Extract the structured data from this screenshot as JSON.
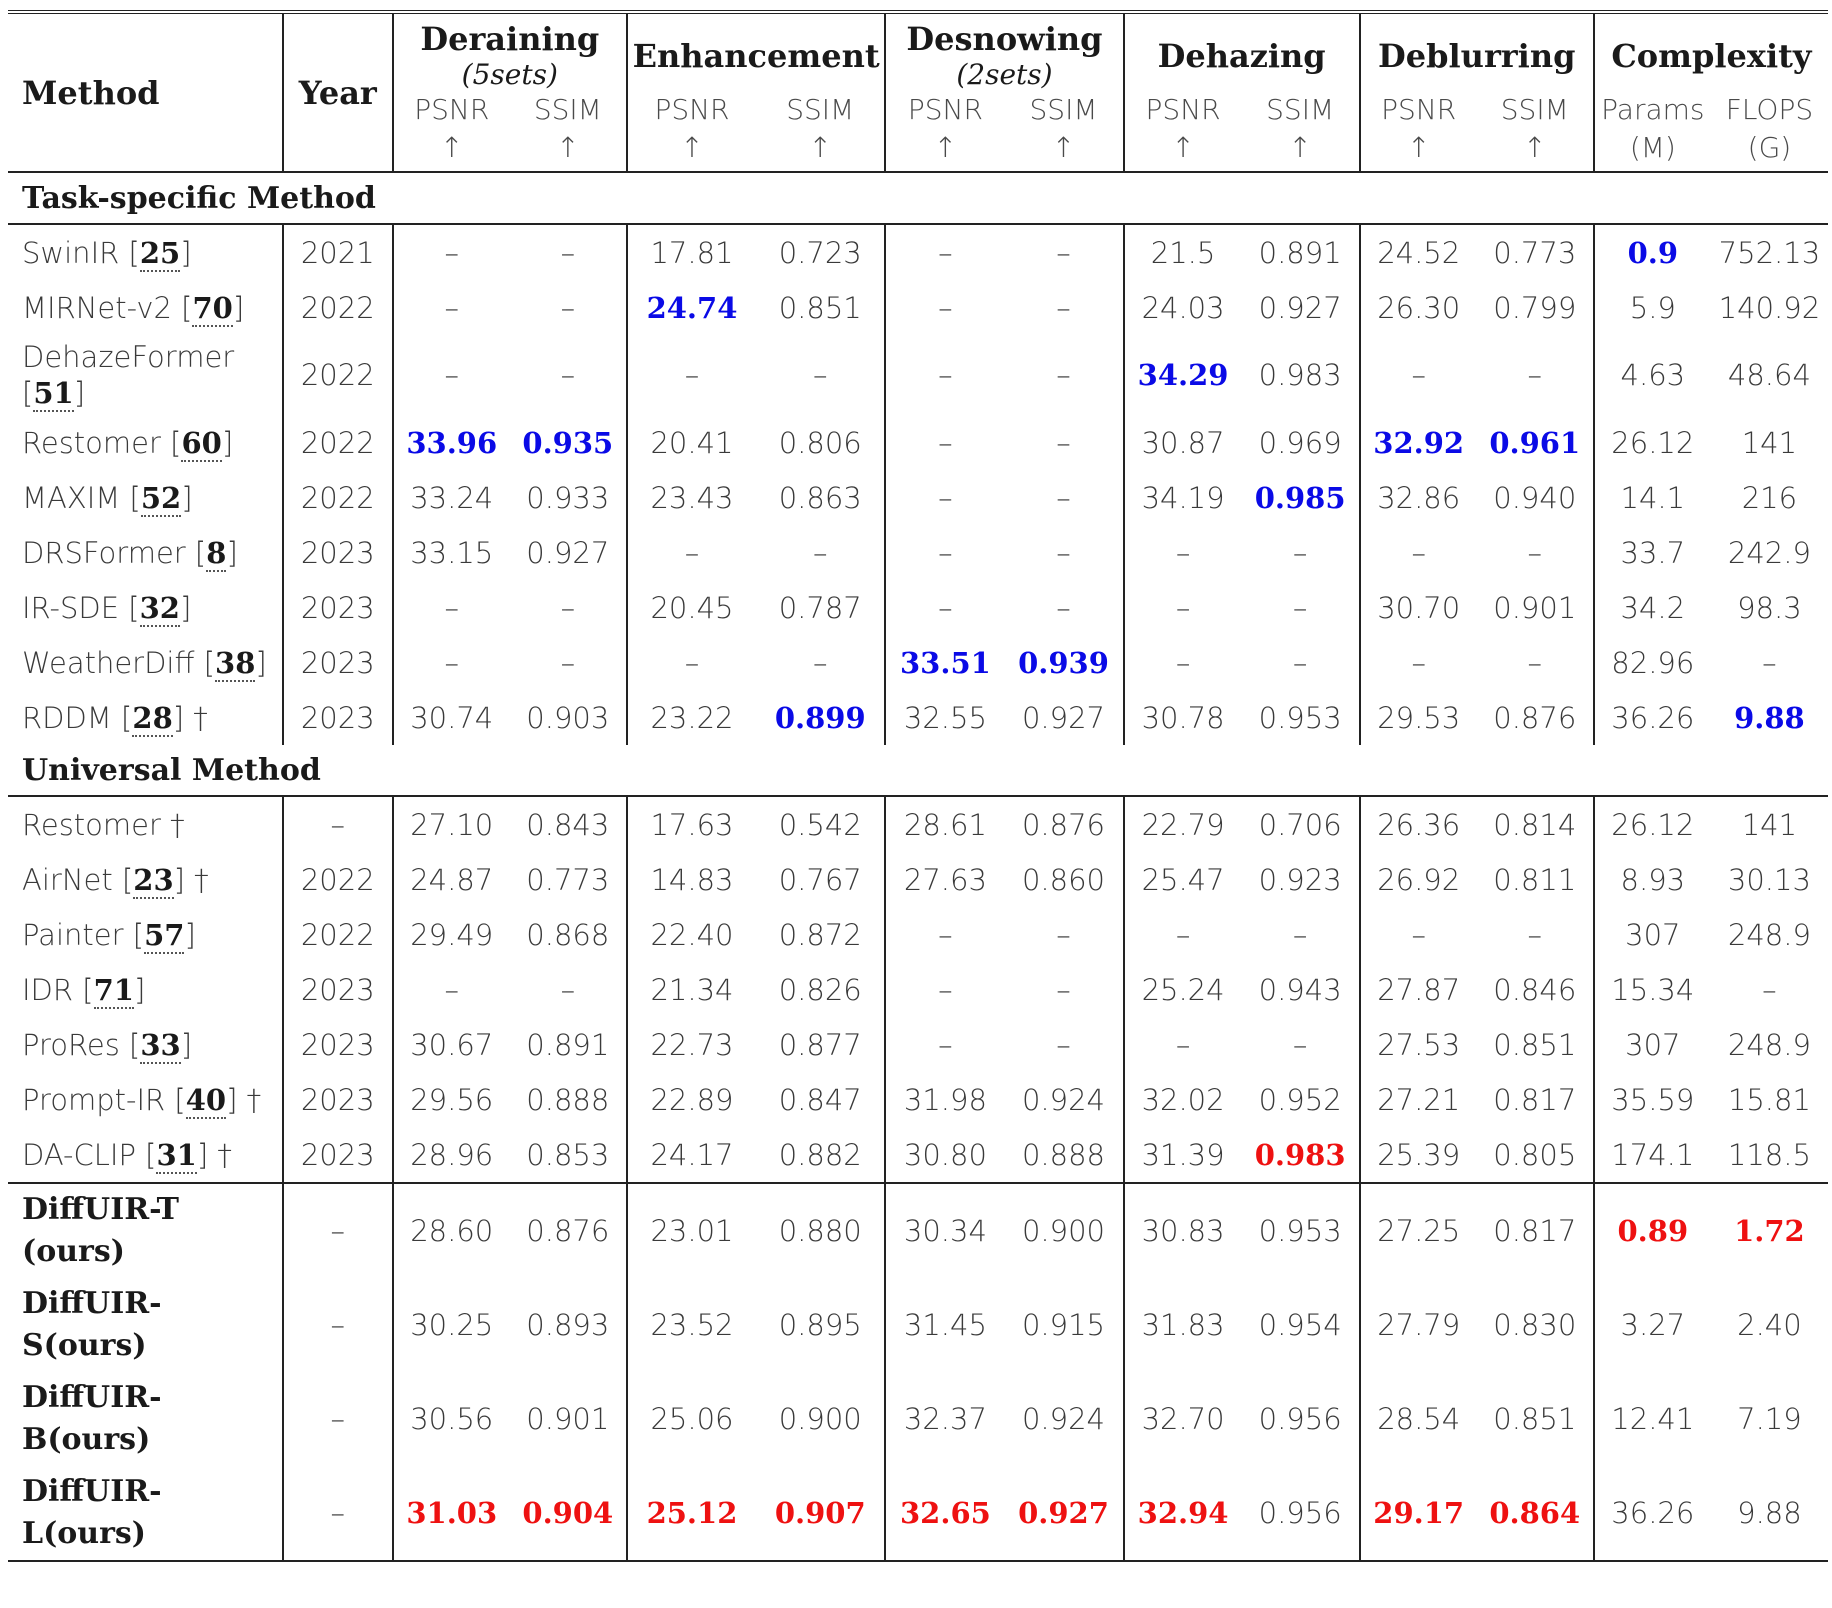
{
  "colors": {
    "blue_best": "#0a0ae6",
    "red_best": "#ee1111"
  },
  "header": {
    "method": "Method",
    "year": "Year",
    "groups": [
      {
        "title": "Deraining",
        "sub": "(5sets)",
        "m1": "PSNR",
        "m2": "SSIM",
        "a1": "↑",
        "a2": "↑"
      },
      {
        "title": "Enhancement",
        "sub": "",
        "m1": "PSNR",
        "m2": "SSIM",
        "a1": "↑",
        "a2": "↑"
      },
      {
        "title": "Desnowing",
        "sub": "(2sets)",
        "m1": "PSNR",
        "m2": "SSIM",
        "a1": "↑",
        "a2": "↑"
      },
      {
        "title": "Dehazing",
        "sub": "",
        "m1": "PSNR",
        "m2": "SSIM",
        "a1": "↑",
        "a2": "↑"
      },
      {
        "title": "Deblurring",
        "sub": "",
        "m1": "PSNR",
        "m2": "SSIM",
        "a1": "↑",
        "a2": "↑"
      },
      {
        "title": "Complexity",
        "sub": "",
        "m1": "Params",
        "m2": "FLOPS",
        "a1": "(M)",
        "a2": "(G)"
      }
    ]
  },
  "sections": [
    {
      "title": "Task-specific Method",
      "rows": [
        {
          "name": "SwinIR",
          "ref": "25",
          "suffix": "",
          "year": "2021",
          "cells": [
            "–",
            "–",
            "17.81",
            "0.723",
            "–",
            "–",
            "21.5",
            "0.891",
            "24.52",
            "0.773",
            "0.9",
            "752.13"
          ],
          "hl": {
            "10": "blue"
          }
        },
        {
          "name": "MIRNet-v2",
          "ref": "70",
          "suffix": "",
          "year": "2022",
          "cells": [
            "–",
            "–",
            "24.74",
            "0.851",
            "–",
            "–",
            "24.03",
            "0.927",
            "26.30",
            "0.799",
            "5.9",
            "140.92"
          ],
          "hl": {
            "2": "blue"
          }
        },
        {
          "name": "DehazeFormer",
          "ref": "51",
          "suffix": "",
          "year": "2022",
          "cells": [
            "–",
            "–",
            "–",
            "–",
            "–",
            "–",
            "34.29",
            "0.983",
            "–",
            "–",
            "4.63",
            "48.64"
          ],
          "hl": {
            "6": "blue"
          },
          "tall": true
        },
        {
          "name": "Restomer",
          "ref": "60",
          "suffix": "",
          "year": "2022",
          "cells": [
            "33.96",
            "0.935",
            "20.41",
            "0.806",
            "–",
            "–",
            "30.87",
            "0.969",
            "32.92",
            "0.961",
            "26.12",
            "141"
          ],
          "hl": {
            "0": "blue",
            "1": "blue",
            "8": "blue",
            "9": "blue"
          }
        },
        {
          "name": "MAXIM",
          "ref": "52",
          "suffix": "",
          "year": "2022",
          "cells": [
            "33.24",
            "0.933",
            "23.43",
            "0.863",
            "–",
            "–",
            "34.19",
            "0.985",
            "32.86",
            "0.940",
            "14.1",
            "216"
          ],
          "hl": {
            "7": "blue"
          }
        },
        {
          "name": "DRSFormer",
          "ref": "8",
          "suffix": "",
          "year": "2023",
          "cells": [
            "33.15",
            "0.927",
            "–",
            "–",
            "–",
            "–",
            "–",
            "–",
            "–",
            "–",
            "33.7",
            "242.9"
          ],
          "hl": {}
        },
        {
          "name": "IR-SDE",
          "ref": "32",
          "suffix": "",
          "year": "2023",
          "cells": [
            "–",
            "–",
            "20.45",
            "0.787",
            "–",
            "–",
            "–",
            "–",
            "30.70",
            "0.901",
            "34.2",
            "98.3"
          ],
          "hl": {}
        },
        {
          "name": "WeatherDiff",
          "ref": "38",
          "suffix": "",
          "year": "2023",
          "cells": [
            "–",
            "–",
            "–",
            "–",
            "33.51",
            "0.939",
            "–",
            "–",
            "–",
            "–",
            "82.96",
            "–"
          ],
          "hl": {
            "4": "blue",
            "5": "blue"
          }
        },
        {
          "name": "RDDM",
          "ref": "28",
          "suffix": " †",
          "year": "2023",
          "cells": [
            "30.74",
            "0.903",
            "23.22",
            "0.899",
            "32.55",
            "0.927",
            "30.78",
            "0.953",
            "29.53",
            "0.876",
            "36.26",
            "9.88"
          ],
          "hl": {
            "3": "blue",
            "11": "blue"
          }
        }
      ]
    },
    {
      "title": "Universal Method",
      "rows": [
        {
          "name": "Restomer †",
          "ref": "",
          "suffix": "",
          "year": "–",
          "cells": [
            "27.10",
            "0.843",
            "17.63",
            "0.542",
            "28.61",
            "0.876",
            "22.79",
            "0.706",
            "26.36",
            "0.814",
            "26.12",
            "141"
          ],
          "hl": {}
        },
        {
          "name": "AirNet",
          "ref": "23",
          "suffix": " †",
          "year": "2022",
          "cells": [
            "24.87",
            "0.773",
            "14.83",
            "0.767",
            "27.63",
            "0.860",
            "25.47",
            "0.923",
            "26.92",
            "0.811",
            "8.93",
            "30.13"
          ],
          "hl": {}
        },
        {
          "name": "Painter",
          "ref": "57",
          "suffix": "",
          "year": "2022",
          "cells": [
            "29.49",
            "0.868",
            "22.40",
            "0.872",
            "–",
            "–",
            "–",
            "–",
            "–",
            "–",
            "307",
            "248.9"
          ],
          "hl": {}
        },
        {
          "name": "IDR",
          "ref": "71",
          "suffix": "",
          "year": "2023",
          "cells": [
            "–",
            "–",
            "21.34",
            "0.826",
            "–",
            "–",
            "25.24",
            "0.943",
            "27.87",
            "0.846",
            "15.34",
            "–"
          ],
          "hl": {}
        },
        {
          "name": "ProRes",
          "ref": "33",
          "suffix": "",
          "year": "2023",
          "cells": [
            "30.67",
            "0.891",
            "22.73",
            "0.877",
            "–",
            "–",
            "–",
            "–",
            "27.53",
            "0.851",
            "307",
            "248.9"
          ],
          "hl": {}
        },
        {
          "name": "Prompt-IR",
          "ref": "40",
          "suffix": " †",
          "year": "2023",
          "cells": [
            "29.56",
            "0.888",
            "22.89",
            "0.847",
            "31.98",
            "0.924",
            "32.02",
            "0.952",
            "27.21",
            "0.817",
            "35.59",
            "15.81"
          ],
          "hl": {}
        },
        {
          "name": "DA-CLIP",
          "ref": "31",
          "suffix": " †",
          "year": "2023",
          "cells": [
            "28.96",
            "0.853",
            "24.17",
            "0.882",
            "30.80",
            "0.888",
            "31.39",
            "0.983",
            "25.39",
            "0.805",
            "174.1",
            "118.5"
          ],
          "hl": {
            "7": "red"
          }
        }
      ]
    }
  ],
  "ours": [
    {
      "name": "DiffUIR-T(ours)",
      "year": "–",
      "cells": [
        "28.60",
        "0.876",
        "23.01",
        "0.880",
        "30.34",
        "0.900",
        "30.83",
        "0.953",
        "27.25",
        "0.817",
        "0.89",
        "1.72"
      ],
      "hl": {
        "10": "red",
        "11": "red"
      }
    },
    {
      "name": "DiffUIR-S(ours)",
      "year": "–",
      "cells": [
        "30.25",
        "0.893",
        "23.52",
        "0.895",
        "31.45",
        "0.915",
        "31.83",
        "0.954",
        "27.79",
        "0.830",
        "3.27",
        "2.40"
      ],
      "hl": {}
    },
    {
      "name": "DiffUIR-B(ours)",
      "year": "–",
      "cells": [
        "30.56",
        "0.901",
        "25.06",
        "0.900",
        "32.37",
        "0.924",
        "32.70",
        "0.956",
        "28.54",
        "0.851",
        "12.41",
        "7.19"
      ],
      "hl": {}
    },
    {
      "name": "DiffUIR-L(ours)",
      "year": "–",
      "cells": [
        "31.03",
        "0.904",
        "25.12",
        "0.907",
        "32.65",
        "0.927",
        "32.94",
        "0.956",
        "29.17",
        "0.864",
        "36.26",
        "9.88"
      ],
      "hl": {
        "0": "red",
        "1": "red",
        "2": "red",
        "3": "red",
        "4": "red",
        "5": "red",
        "6": "red",
        "8": "red",
        "9": "red"
      }
    }
  ]
}
